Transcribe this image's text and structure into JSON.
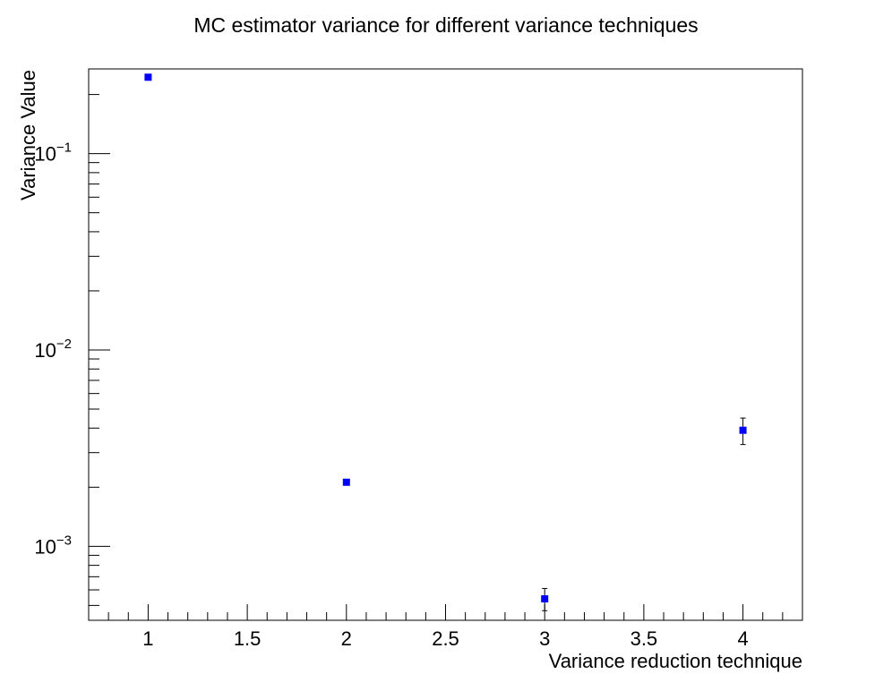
{
  "chart_data": {
    "type": "scatter",
    "title": "MC estimator variance for different variance techniques",
    "xlabel": "Variance reduction technique",
    "ylabel": "Variance Value",
    "xlim": [
      0.7,
      4.3
    ],
    "ylim": [
      0.00042,
      0.27
    ],
    "yscale": "log",
    "grid": false,
    "x_ticks": [
      {
        "value": 1,
        "label": "1"
      },
      {
        "value": 1.5,
        "label": "1.5"
      },
      {
        "value": 2,
        "label": "2"
      },
      {
        "value": 2.5,
        "label": "2.5"
      },
      {
        "value": 3,
        "label": "3"
      },
      {
        "value": 3.5,
        "label": "3.5"
      },
      {
        "value": 4,
        "label": "4"
      }
    ],
    "y_ticks": [
      {
        "value": 0.001,
        "base": "10",
        "exp": "−3"
      },
      {
        "value": 0.01,
        "base": "10",
        "exp": "−2"
      },
      {
        "value": 0.1,
        "base": "10",
        "exp": "−1"
      }
    ],
    "points": [
      {
        "x": 1,
        "y": 0.245,
        "err": 0.0
      },
      {
        "x": 2,
        "y": 0.00212,
        "err": 1e-05
      },
      {
        "x": 3,
        "y": 0.00054,
        "err": 7e-05
      },
      {
        "x": 4,
        "y": 0.0039,
        "err": 0.0006
      }
    ],
    "marker_color": "#0000ff"
  }
}
